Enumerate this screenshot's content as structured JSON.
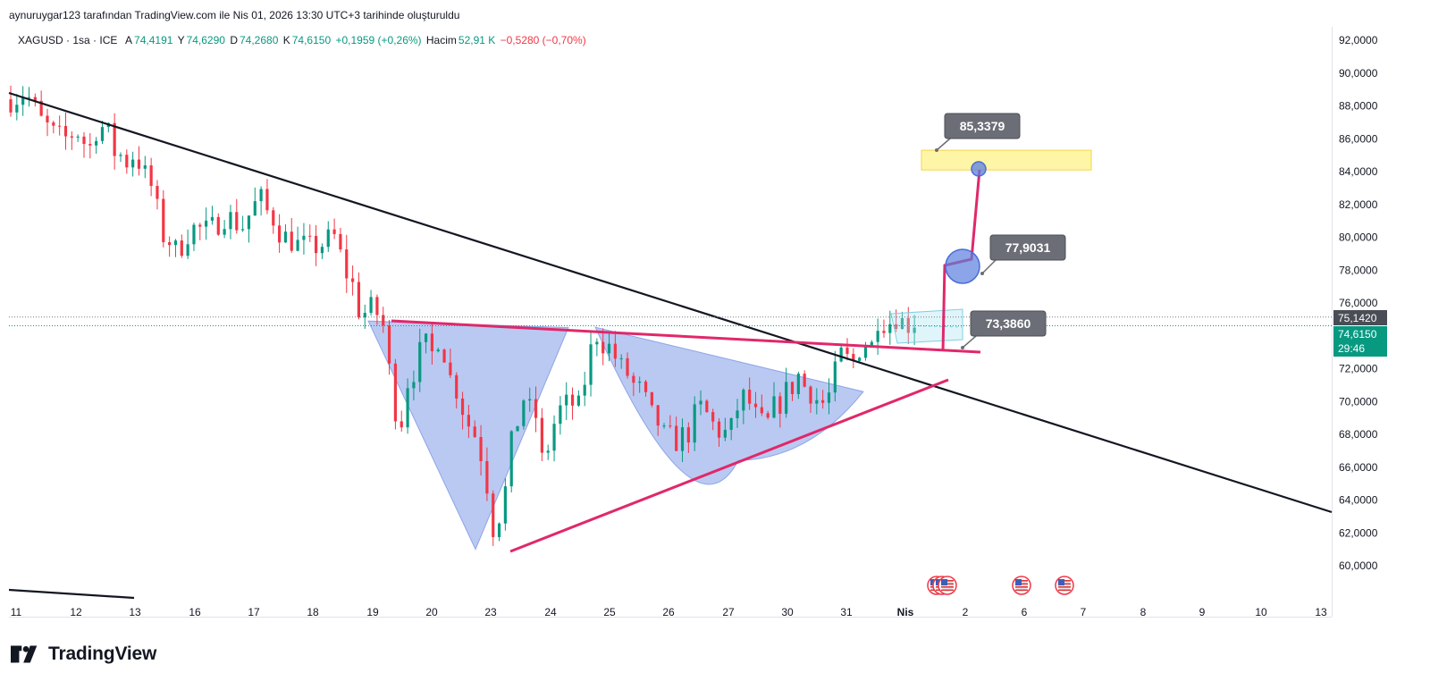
{
  "header": {
    "attribution": "aynuruygar123 tarafından TradingView.com ile Nis 01, 2026 13:30 UTC+3 tarihinde oluşturuldu"
  },
  "legend": {
    "symbol": "XAGUSD · 1sa · ICE",
    "open_label": "A",
    "open_value": "74,4191",
    "high_label": "Y",
    "high_value": "74,6290",
    "low_label": "D",
    "low_value": "74,2680",
    "close_label": "K",
    "close_value": "74,6150",
    "change": "+0,1959 (+0,26%)",
    "volume_label": "Hacim",
    "volume_value": "52,91 K",
    "volume_change": "−0,5280 (−0,70%)"
  },
  "brand": {
    "name": "TradingView"
  },
  "colors": {
    "up": "#089981",
    "down": "#f23645",
    "pattern_line": "#e0286a",
    "fill": "#5b7fe0",
    "target_zone": "#fff28a"
  },
  "chart_data": {
    "type": "candlestick",
    "symbol": "XAGUSD",
    "interval": "1sa",
    "y_axis_labels": [
      "92,0000",
      "90,0000",
      "88,0000",
      "86,0000",
      "84,0000",
      "82,0000",
      "80,0000",
      "78,0000",
      "76,0000",
      "74,0000",
      "72,0000",
      "70,0000",
      "68,0000",
      "66,0000",
      "64,0000",
      "62,0000",
      "60,0000"
    ],
    "y_values": [
      92,
      90,
      88,
      86,
      84,
      82,
      80,
      78,
      76,
      74,
      72,
      70,
      68,
      66,
      64,
      62,
      60
    ],
    "ylim": [
      58.3,
      93
    ],
    "x_axis_labels": [
      "11",
      "12",
      "13",
      "16",
      "17",
      "18",
      "19",
      "20",
      "23",
      "24",
      "25",
      "26",
      "27",
      "30",
      "31",
      "Nis",
      "2",
      "6",
      "7",
      "8",
      "9",
      "10",
      "13"
    ],
    "price_path": [
      [
        0,
        88.4
      ],
      [
        3,
        88.8
      ],
      [
        6,
        87.8
      ],
      [
        9,
        86.7
      ],
      [
        13,
        85.9
      ],
      [
        17,
        86.4
      ],
      [
        20,
        85.5
      ],
      [
        23,
        87.1
      ],
      [
        25,
        86.3
      ],
      [
        27,
        85.2
      ],
      [
        30,
        84.6
      ],
      [
        32,
        85.0
      ],
      [
        35,
        83.8
      ],
      [
        37,
        82.4
      ],
      [
        40,
        80.1
      ],
      [
        43,
        79.2
      ],
      [
        47,
        80.6
      ],
      [
        51,
        80.4
      ],
      [
        56,
        81.3
      ],
      [
        60,
        80.7
      ],
      [
        65,
        82.3
      ],
      [
        70,
        80.4
      ],
      [
        74,
        79.6
      ],
      [
        79,
        79.3
      ],
      [
        84,
        80.0
      ],
      [
        88,
        77.8
      ],
      [
        91,
        75.6
      ],
      [
        93,
        75.2
      ],
      [
        95,
        76.1
      ],
      [
        97,
        74.6
      ],
      [
        99,
        71.9
      ],
      [
        101,
        67.2
      ],
      [
        103,
        70.6
      ],
      [
        106,
        72.5
      ],
      [
        108,
        73.4
      ],
      [
        110,
        72.9
      ],
      [
        112,
        73.9
      ],
      [
        114,
        72.1
      ],
      [
        117,
        70.1
      ],
      [
        120,
        68.6
      ],
      [
        123,
        66.8
      ],
      [
        125,
        63.1
      ],
      [
        127,
        61.6
      ],
      [
        129,
        64.6
      ],
      [
        132,
        68.8
      ],
      [
        134,
        70.2
      ],
      [
        137,
        69.1
      ],
      [
        139,
        66.4
      ],
      [
        141,
        68.1
      ],
      [
        143,
        69.2
      ],
      [
        146,
        70.1
      ],
      [
        148,
        69.6
      ],
      [
        151,
        72.1
      ],
      [
        153,
        74.1
      ],
      [
        156,
        73.3
      ],
      [
        159,
        72.4
      ],
      [
        162,
        71.3
      ],
      [
        165,
        70.4
      ],
      [
        168,
        69.1
      ],
      [
        171,
        67.9
      ],
      [
        174,
        67.6
      ],
      [
        177,
        68.1
      ],
      [
        180,
        69.6
      ],
      [
        183,
        69.0
      ],
      [
        186,
        67.8
      ],
      [
        189,
        68.6
      ],
      [
        191,
        70.6
      ],
      [
        194,
        69.5
      ],
      [
        197,
        68.2
      ],
      [
        200,
        69.6
      ],
      [
        203,
        70.6
      ],
      [
        206,
        71.6
      ],
      [
        209,
        70.6
      ],
      [
        212,
        69.9
      ],
      [
        215,
        70.6
      ],
      [
        217,
        72.8
      ],
      [
        220,
        72.4
      ],
      [
        223,
        73.7
      ],
      [
        225,
        73.4
      ],
      [
        227,
        75.1
      ],
      [
        229,
        74.7
      ],
      [
        232,
        75.2
      ],
      [
        234,
        74.5
      ],
      [
        236,
        74.9
      ],
      [
        238,
        74.6
      ]
    ],
    "start_index": 0,
    "end_index": 238,
    "last_index_at_label": {
      "Nis": 231
    },
    "current_price": "74,6150",
    "current_countdown": "29:46",
    "dotted_level": "75,1420",
    "downtrend_line": {
      "from": [
        0,
        88.8
      ],
      "to": [
        334,
        63.3
      ]
    },
    "lower_short_line": {
      "from": [
        0,
        59.8
      ],
      "to": [
        34,
        58.9
      ]
    },
    "neckline": {
      "from": [
        100,
        74.9
      ],
      "to": [
        251,
        73.2
      ]
    },
    "rising_support": {
      "from": [
        130,
        61.0
      ],
      "to": [
        243,
        71.4
      ]
    },
    "left_shoulder_triangle": [
      [
        100,
        74.9
      ],
      [
        130,
        61.0
      ],
      [
        156,
        74.5
      ]
    ],
    "right_bowl": {
      "left": [
        156,
        74.2
      ],
      "right": [
        221,
        70.6
      ],
      "bottom": 66.4
    },
    "flag_channel": {
      "top": [
        [
          226,
          75.6
        ],
        [
          244,
          75.9
        ]
      ],
      "bottom": [
        [
          228,
          73.8
        ],
        [
          244,
          74.3
        ]
      ]
    },
    "projection_path": [
      [
        238,
        73.2
      ],
      [
        239,
        78.5
      ],
      [
        246,
        77.9
      ],
      [
        247,
        84.1
      ]
    ],
    "target_zone": {
      "from_index": 230,
      "to_index": 273,
      "low": 84.1,
      "high": 85.3
    },
    "annotations": [
      {
        "text": "85,3379",
        "index": 238,
        "price": 85.3379
      },
      {
        "text": "77,9031",
        "index": 248,
        "price": 77.9031
      },
      {
        "text": "73,3860",
        "index": 246,
        "price": 73.386
      }
    ],
    "circles": [
      {
        "index": 243,
        "price": 78.0,
        "size": "large"
      },
      {
        "index": 247,
        "price": 84.2,
        "size": "small"
      }
    ],
    "event_markers": [
      {
        "index": 236,
        "count": 3
      },
      {
        "index": 259,
        "count": 1
      },
      {
        "index": 270,
        "count": 1
      }
    ]
  }
}
